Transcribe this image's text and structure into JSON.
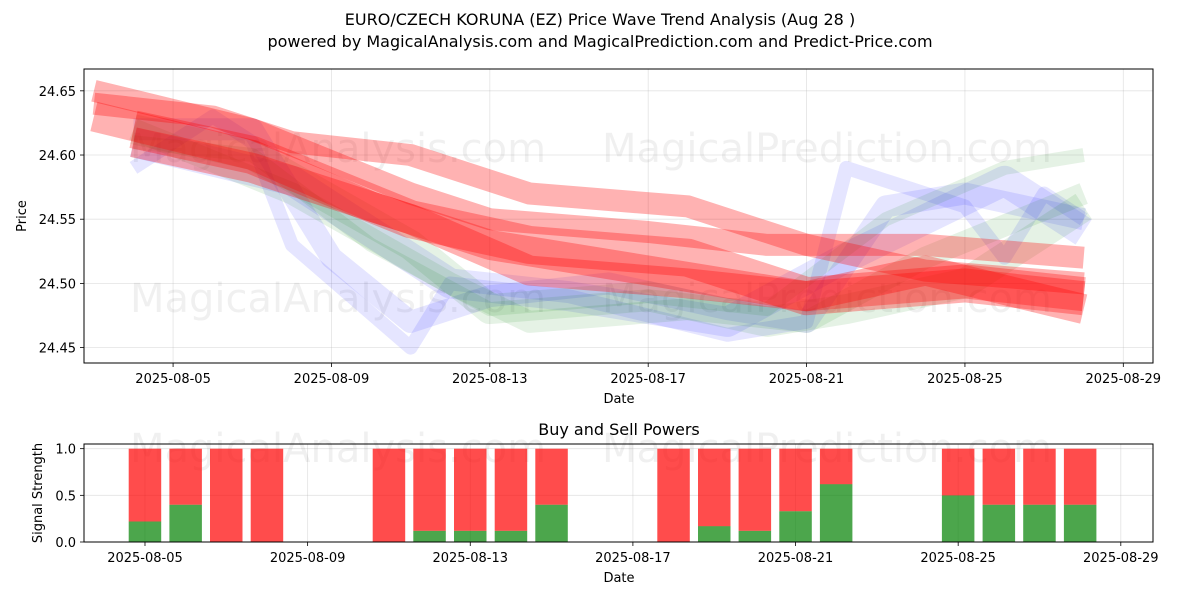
{
  "header": {
    "title": "EURO/CZECH KORUNA (EZ) Price Wave Trend Analysis (Aug 28 )",
    "subtitle": "powered by MagicalAnalysis.com and MagicalPrediction.com and Predict-Price.com"
  },
  "watermarks": [
    "MagicalAnalysis.com",
    "MagicalPrediction.com"
  ],
  "colors": {
    "sell": "#ff0000",
    "buy": "#008000",
    "blue_band": "#0000ff",
    "green_band": "#008000",
    "red_band": "#ff0000"
  },
  "chart_data": [
    {
      "type": "area",
      "title": "",
      "xlabel": "Date",
      "ylabel": "Price",
      "x_ticks": [
        "2025-08-05",
        "2025-08-09",
        "2025-08-13",
        "2025-08-17",
        "2025-08-21",
        "2025-08-25",
        "2025-08-29"
      ],
      "y_ticks": [
        "24.45",
        "24.50",
        "24.55",
        "24.60",
        "24.65"
      ],
      "xlim": [
        "2025-08-02T18:00",
        "2025-08-29T18:00"
      ],
      "ylim": [
        24.438,
        24.667
      ],
      "grid": true,
      "series": [
        {
          "color": "blue",
          "x": [
            "2025-08-04",
            "2025-08-06",
            "2025-08-07",
            "2025-08-08",
            "2025-08-11",
            "2025-08-12",
            "2025-08-15",
            "2025-08-19",
            "2025-08-21",
            "2025-08-22",
            "2025-08-25",
            "2025-08-26",
            "2025-08-27",
            "2025-08-28"
          ],
          "y": [
            24.59,
            24.63,
            24.61,
            24.53,
            24.45,
            24.5,
            24.49,
            24.46,
            24.47,
            24.59,
            24.56,
            24.52,
            24.57,
            24.55
          ]
        },
        {
          "color": "blue",
          "x": [
            "2025-08-04",
            "2025-08-07",
            "2025-08-09",
            "2025-08-11",
            "2025-08-13",
            "2025-08-16",
            "2025-08-19",
            "2025-08-21",
            "2025-08-23",
            "2025-08-25",
            "2025-08-28"
          ],
          "y": [
            24.62,
            24.62,
            24.52,
            24.47,
            24.49,
            24.5,
            24.48,
            24.47,
            24.56,
            24.57,
            24.55
          ]
        },
        {
          "color": "blue",
          "x": [
            "2025-08-04",
            "2025-08-08",
            "2025-08-12",
            "2025-08-15",
            "2025-08-19",
            "2025-08-22",
            "2025-08-26",
            "2025-08-28"
          ],
          "y": [
            24.61,
            24.58,
            24.5,
            24.49,
            24.47,
            24.52,
            24.58,
            24.54
          ]
        },
        {
          "color": "green",
          "x": [
            "2025-08-04",
            "2025-08-07",
            "2025-08-10",
            "2025-08-13",
            "2025-08-17",
            "2025-08-20",
            "2025-08-23",
            "2025-08-26",
            "2025-08-28"
          ],
          "y": [
            24.61,
            24.6,
            24.53,
            24.48,
            24.49,
            24.48,
            24.55,
            24.59,
            24.6
          ]
        },
        {
          "color": "green",
          "x": [
            "2025-08-04",
            "2025-08-08",
            "2025-08-12",
            "2025-08-14",
            "2025-08-18",
            "2025-08-21",
            "2025-08-24",
            "2025-08-28"
          ],
          "y": [
            24.62,
            24.57,
            24.5,
            24.47,
            24.48,
            24.47,
            24.52,
            24.57
          ]
        },
        {
          "color": "green",
          "x": [
            "2025-08-04",
            "2025-08-07",
            "2025-08-11",
            "2025-08-13",
            "2025-08-17",
            "2025-08-20",
            "2025-08-22",
            "2025-08-25",
            "2025-08-28"
          ],
          "y": [
            24.62,
            24.6,
            24.53,
            24.48,
            24.49,
            24.47,
            24.48,
            24.5,
            24.56
          ]
        },
        {
          "color": "red",
          "x": [
            "2025-08-03",
            "2025-08-06",
            "2025-08-08",
            "2025-08-11",
            "2025-08-14",
            "2025-08-18",
            "2025-08-21",
            "2025-08-24",
            "2025-08-28"
          ],
          "y": [
            24.64,
            24.63,
            24.61,
            24.6,
            24.57,
            24.56,
            24.53,
            24.51,
            24.5
          ]
        },
        {
          "color": "red",
          "x": [
            "2025-08-03",
            "2025-08-07",
            "2025-08-10",
            "2025-08-13",
            "2025-08-17",
            "2025-08-21",
            "2025-08-25",
            "2025-08-28"
          ],
          "y": [
            24.63,
            24.6,
            24.56,
            24.53,
            24.51,
            24.49,
            24.5,
            24.49
          ]
        },
        {
          "color": "red",
          "x": [
            "2025-08-04",
            "2025-08-07",
            "2025-08-11",
            "2025-08-14",
            "2025-08-18",
            "2025-08-21",
            "2025-08-25",
            "2025-08-28"
          ],
          "y": [
            24.62,
            24.6,
            24.55,
            24.53,
            24.52,
            24.49,
            24.5,
            24.49
          ]
        },
        {
          "color": "red",
          "x": [
            "2025-08-03",
            "2025-08-07",
            "2025-08-11",
            "2025-08-13",
            "2025-08-17",
            "2025-08-20",
            "2025-08-24",
            "2025-08-28"
          ],
          "y": [
            24.65,
            24.62,
            24.57,
            24.55,
            24.54,
            24.53,
            24.53,
            24.52
          ]
        },
        {
          "color": "red",
          "x": [
            "2025-08-04",
            "2025-08-07",
            "2025-08-11",
            "2025-08-14",
            "2025-08-18",
            "2025-08-21",
            "2025-08-24",
            "2025-08-28"
          ],
          "y": [
            24.61,
            24.59,
            24.55,
            24.51,
            24.5,
            24.49,
            24.51,
            24.48
          ]
        }
      ]
    },
    {
      "type": "bar",
      "title": "Buy and Sell Powers",
      "xlabel": "Date",
      "ylabel": "Signal Strength",
      "x_ticks": [
        "2025-08-05",
        "2025-08-09",
        "2025-08-13",
        "2025-08-17",
        "2025-08-21",
        "2025-08-25",
        "2025-08-29"
      ],
      "y_ticks": [
        "0.0",
        "0.5",
        "1.0"
      ],
      "ylim": [
        0,
        1.05
      ],
      "grid": true,
      "categories": [
        "2025-08-05",
        "2025-08-06",
        "2025-08-07",
        "2025-08-08",
        "2025-08-11",
        "2025-08-12",
        "2025-08-13",
        "2025-08-14",
        "2025-08-15",
        "2025-08-18",
        "2025-08-19",
        "2025-08-20",
        "2025-08-21",
        "2025-08-22",
        "2025-08-25",
        "2025-08-26",
        "2025-08-27",
        "2025-08-28"
      ],
      "series": [
        {
          "color": "buy",
          "values": [
            0.22,
            0.4,
            0.0,
            0.0,
            0.0,
            0.12,
            0.12,
            0.12,
            0.4,
            0.0,
            0.17,
            0.12,
            0.33,
            0.62,
            0.5,
            0.4,
            0.4,
            0.4
          ]
        },
        {
          "color": "sell",
          "values": [
            0.78,
            0.6,
            1.0,
            1.0,
            1.0,
            0.88,
            0.88,
            0.88,
            0.6,
            1.0,
            0.83,
            0.88,
            0.67,
            0.38,
            0.5,
            0.6,
            0.6,
            0.6
          ]
        }
      ]
    }
  ]
}
